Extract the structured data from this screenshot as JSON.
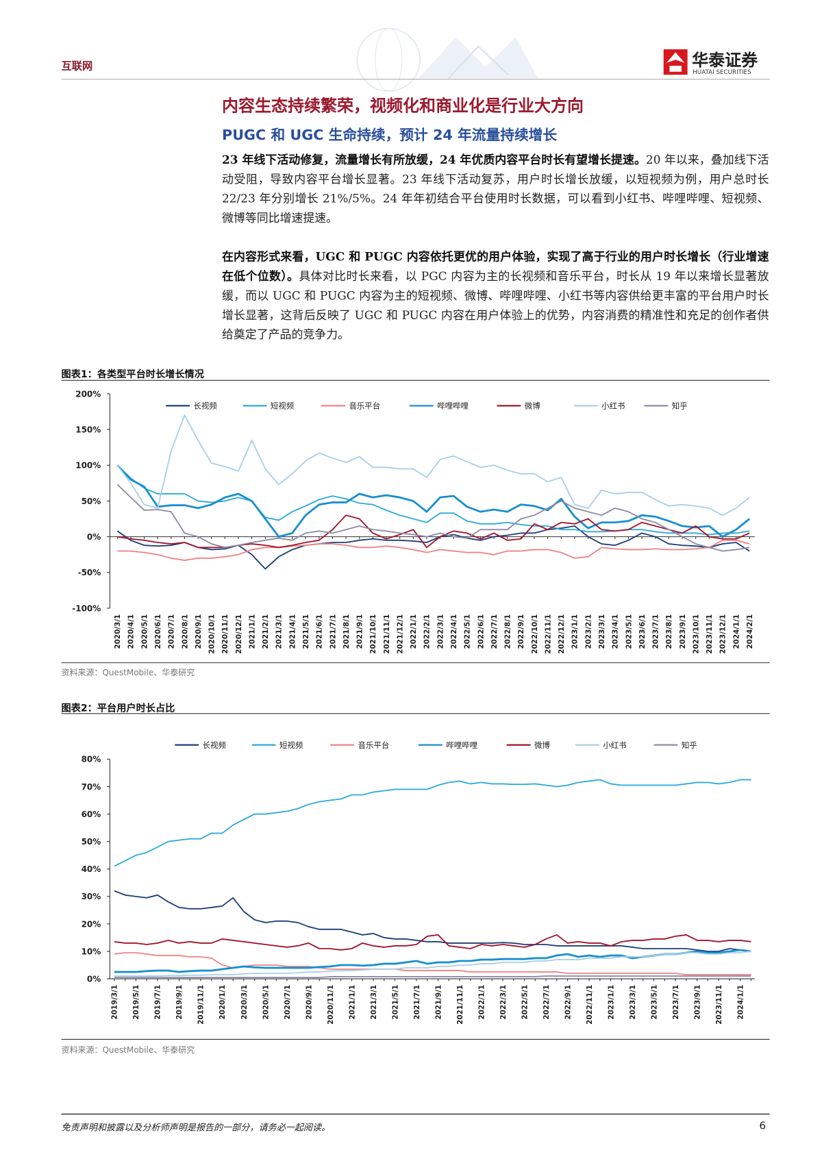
{
  "header": {
    "section": "互联网",
    "brand": "华泰证券",
    "brand_en": "HUATAI SECURITIES"
  },
  "headline": "内容生态持续繁荣，视频化和商业化是行业大方向",
  "subheadline": "PUGC 和 UGC 生命持续，预计 24 年流量持续增长",
  "paragraphs": [
    {
      "bold": "23 年线下活动修复，流量增长有所放缓，24 年优质内容平台时长有望增长提速。",
      "text": "20 年以来，叠加线下活动受阻，导致内容平台增长显著。23 年线下活动复苏，用户时长增长放缓，以短视频为例，用户总时长 22/23 年分别增长 21%/5%。24 年年初结合平台使用时长数据，可以看到小红书、哔哩哔哩、短视频、微博等同比增速提速。"
    },
    {
      "bold": "在内容形式来看，UGC 和 PUGC 内容依托更优的用户体验，实现了高于行业的用户时长增长（行业增速在低个位数）。",
      "text": "具体对比时长来看，以 PGC 内容为主的长视频和音乐平台，时长从 19 年以来增长显著放缓，而以 UGC 和 PUGC 内容为主的短视频、微博、哔哩哔哩、小红书等内容供给更丰富的平台用户时长增长显著，这背后反映了 UGC 和 PUGC 内容在用户体验上的优势，内容消费的精准性和充足的创作者供给奠定了产品的竞争力。"
    }
  ],
  "chart_data": [
    {
      "type": "line",
      "title": "图表1：各类型平台时长增长情况",
      "source": "资料来源：QuestMobile、华泰研究",
      "categories": [
        "2020/3/1",
        "2020/4/1",
        "2020/5/1",
        "2020/6/1",
        "2020/7/1",
        "2020/8/1",
        "2020/9/1",
        "2020/10/1",
        "2020/11/1",
        "2020/12/1",
        "2021/1/1",
        "2021/2/1",
        "2021/3/1",
        "2021/4/1",
        "2021/5/1",
        "2021/6/1",
        "2021/7/1",
        "2021/8/1",
        "2021/9/1",
        "2021/10/1",
        "2021/11/1",
        "2021/12/1",
        "2022/1/1",
        "2022/2/1",
        "2022/3/1",
        "2022/4/1",
        "2022/5/1",
        "2022/6/1",
        "2022/7/1",
        "2022/8/1",
        "2022/9/1",
        "2022/10/1",
        "2022/11/1",
        "2022/12/1",
        "2023/1/1",
        "2023/2/1",
        "2023/3/1",
        "2023/4/1",
        "2023/5/1",
        "2023/6/1",
        "2023/7/1",
        "2023/8/1",
        "2023/9/1",
        "2023/10/1",
        "2023/11/1",
        "2023/12/1",
        "2024/1/1",
        "2024/2/1"
      ],
      "series": [
        {
          "name": "长视频",
          "color": "#1f3f7a",
          "values": [
            8,
            -5,
            -12,
            -13,
            -12,
            -8,
            -15,
            -18,
            -17,
            -12,
            -25,
            -45,
            -28,
            -18,
            -12,
            -10,
            -8,
            -8,
            -5,
            -3,
            -5,
            -5,
            -6,
            -8,
            0,
            3,
            -2,
            -5,
            0,
            2,
            5,
            5,
            10,
            12,
            15,
            0,
            -10,
            -12,
            -5,
            5,
            0,
            -10,
            -12,
            -13,
            -15,
            -10,
            -8,
            -20
          ]
        },
        {
          "name": "短视频",
          "color": "#2eaadc",
          "values": [
            100,
            82,
            68,
            60,
            60,
            60,
            50,
            48,
            50,
            55,
            50,
            27,
            23,
            35,
            43,
            52,
            57,
            53,
            47,
            45,
            37,
            30,
            25,
            20,
            33,
            33,
            22,
            18,
            18,
            20,
            17,
            15,
            15,
            10,
            10,
            7,
            7,
            8,
            10,
            10,
            7,
            5,
            5,
            5,
            3,
            5,
            5,
            8
          ]
        },
        {
          "name": "音乐平台",
          "color": "#f08484",
          "values": [
            -20,
            -20,
            -22,
            -25,
            -30,
            -33,
            -30,
            -30,
            -28,
            -25,
            -18,
            -15,
            -15,
            -13,
            -12,
            -10,
            -10,
            -12,
            -15,
            -15,
            -13,
            -15,
            -18,
            -22,
            -18,
            -20,
            -22,
            -22,
            -25,
            -20,
            -20,
            -18,
            -18,
            -22,
            -30,
            -28,
            -15,
            -17,
            -18,
            -18,
            -17,
            -18,
            -18,
            -17,
            -15,
            -5,
            -5,
            -10
          ]
        },
        {
          "name": "哔哩哔哩",
          "color": "#1a8fd0",
          "values": [
            100,
            80,
            70,
            42,
            44,
            44,
            40,
            45,
            55,
            60,
            50,
            25,
            0,
            5,
            30,
            45,
            48,
            48,
            60,
            55,
            58,
            55,
            50,
            35,
            55,
            57,
            42,
            35,
            38,
            35,
            45,
            43,
            37,
            53,
            28,
            12,
            20,
            20,
            22,
            30,
            28,
            22,
            15,
            13,
            15,
            0,
            10,
            25
          ]
        },
        {
          "name": "微博",
          "color": "#a0162a",
          "values": [
            0,
            -3,
            -5,
            -8,
            -10,
            -8,
            -15,
            -15,
            -15,
            -12,
            -10,
            -12,
            -15,
            -12,
            -8,
            -5,
            10,
            30,
            25,
            5,
            -3,
            3,
            10,
            -15,
            0,
            8,
            5,
            -3,
            5,
            -5,
            -3,
            18,
            10,
            20,
            18,
            25,
            10,
            8,
            10,
            20,
            15,
            10,
            5,
            15,
            0,
            -3,
            -3,
            5
          ]
        },
        {
          "name": "小红书",
          "color": "#a8d0e6",
          "values": [
            100,
            75,
            45,
            40,
            120,
            170,
            135,
            103,
            98,
            92,
            135,
            95,
            73,
            88,
            106,
            117,
            110,
            104,
            112,
            97,
            97,
            95,
            95,
            83,
            108,
            113,
            105,
            97,
            100,
            93,
            88,
            88,
            77,
            83,
            45,
            40,
            65,
            60,
            62,
            62,
            52,
            43,
            45,
            43,
            40,
            30,
            40,
            55
          ]
        },
        {
          "name": "知乎",
          "color": "#8c8ca8",
          "values": [
            73,
            55,
            37,
            38,
            35,
            5,
            0,
            -10,
            -15,
            -12,
            -8,
            -5,
            -2,
            -5,
            5,
            8,
            5,
            10,
            15,
            10,
            8,
            5,
            3,
            0,
            5,
            0,
            -2,
            10,
            10,
            10,
            25,
            30,
            40,
            50,
            40,
            35,
            30,
            40,
            35,
            25,
            20,
            10,
            0,
            -10,
            -15,
            -20,
            -18,
            -15
          ]
        }
      ],
      "ylim": [
        -100,
        200
      ],
      "yticks": [
        {
          "value": -100,
          "label": "-100%"
        },
        {
          "value": -50,
          "label": "-50%"
        },
        {
          "value": 0,
          "label": "0%"
        },
        {
          "value": 50,
          "label": "50%"
        },
        {
          "value": 100,
          "label": "100%"
        },
        {
          "value": 150,
          "label": "150%"
        },
        {
          "value": 200,
          "label": "200%"
        }
      ],
      "grid": false,
      "legend": "top"
    },
    {
      "type": "line",
      "title": "图表2：平台用户时长占比",
      "source": "资料来源：QuestMobile、华泰研究",
      "categories": [
        "2019/3/1",
        null,
        "2019/5/1",
        null,
        "2019/7/1",
        null,
        "2019/9/1",
        null,
        "2019/11/1",
        null,
        "2020/1/1",
        null,
        "2020/3/1",
        null,
        "2020/5/1",
        null,
        "2020/7/1",
        null,
        "2020/9/1",
        null,
        "2020/11/1",
        null,
        "2021/1/1",
        null,
        "2021/3/1",
        null,
        "2021/5/1",
        null,
        "2021/7/1",
        null,
        "2021/9/1",
        null,
        "2021/11/1",
        null,
        "2022/1/1",
        null,
        "2022/3/1",
        null,
        "2022/5/1",
        null,
        "2022/7/1",
        null,
        "2022/9/1",
        null,
        "2022/11/1",
        null,
        "2023/1/1",
        null,
        "2023/3/1",
        null,
        "2023/5/1",
        null,
        "2023/7/1",
        null,
        "2023/9/1",
        null,
        "2023/11/1",
        null,
        "2024/1/1",
        null
      ],
      "series": [
        {
          "name": "长视频",
          "color": "#1f3f7a",
          "values": [
            32,
            30.5,
            30,
            29.5,
            30.5,
            28,
            26,
            25.5,
            25.5,
            26,
            26.5,
            29.5,
            24.5,
            21.5,
            20.5,
            21,
            21,
            20.5,
            19,
            18,
            18,
            18,
            17,
            16,
            16.5,
            15,
            14.5,
            14.5,
            14,
            13.5,
            13.5,
            13,
            13,
            13,
            13,
            13,
            13.2,
            13,
            12.5,
            12.5,
            12.5,
            12,
            12,
            12,
            12,
            12,
            12,
            12,
            11.5,
            11,
            11,
            11,
            11,
            11,
            10.5,
            10,
            10,
            11,
            10.5,
            10
          ]
        },
        {
          "name": "短视频",
          "color": "#2eaadc",
          "values": [
            41,
            43,
            45,
            46,
            48,
            50,
            50.5,
            51,
            51,
            53,
            53,
            56,
            58,
            60,
            60,
            60.5,
            61,
            62,
            63.5,
            64.5,
            65,
            65.5,
            67,
            67,
            68,
            68.5,
            69,
            69,
            69,
            69,
            70.5,
            71.5,
            72,
            71,
            71.5,
            71,
            71,
            70.8,
            70.8,
            71,
            70.5,
            70,
            70.5,
            71.5,
            72,
            72.5,
            71,
            70.5,
            70.5,
            70.5,
            70.5,
            70.5,
            70.5,
            71,
            71.5,
            71.5,
            71,
            71.5,
            72.5,
            72.5
          ]
        },
        {
          "name": "音乐平台",
          "color": "#f08484",
          "values": [
            9,
            9.5,
            9.5,
            9,
            8.5,
            8.5,
            8.5,
            8,
            8,
            7.5,
            5,
            4,
            4.5,
            5,
            5,
            5,
            4.5,
            4.5,
            4.5,
            4,
            3.5,
            3.5,
            3.5,
            3.5,
            3.5,
            3.5,
            3.5,
            3,
            3,
            3,
            3,
            3,
            3,
            2.5,
            2.5,
            2.5,
            2.5,
            2.5,
            2.5,
            2.5,
            2.5,
            2.5,
            2,
            2,
            2,
            2,
            2,
            2,
            2,
            2,
            2,
            2,
            2,
            1.5,
            1.5,
            1.5,
            1.5,
            1.5,
            1.5,
            1.5
          ]
        },
        {
          "name": "哔哩哔哩",
          "color": "#1a8fd0",
          "values": [
            2.5,
            2.5,
            2.5,
            2.8,
            3,
            3,
            2.5,
            2.8,
            3,
            3,
            3.5,
            4,
            4.5,
            4.2,
            4,
            4,
            4,
            4,
            4,
            4.3,
            4.5,
            5,
            5,
            4.8,
            5,
            5.5,
            5.5,
            6,
            6.5,
            5.5,
            6,
            6,
            6.5,
            6.5,
            7,
            7,
            7.2,
            7.2,
            7.2,
            7.5,
            7.5,
            8.5,
            9,
            8,
            8.5,
            8,
            8.5,
            8.5,
            7.5,
            8,
            8.5,
            9,
            9,
            9.5,
            10,
            9.5,
            9.5,
            10,
            10.5,
            10
          ]
        },
        {
          "name": "微博",
          "color": "#a0162a",
          "values": [
            13.5,
            13,
            13,
            12.5,
            13,
            14,
            13,
            13.5,
            13,
            13,
            14.5,
            14,
            13.5,
            13,
            12.5,
            12,
            11.5,
            12,
            13,
            11,
            11,
            10.5,
            11,
            13,
            12,
            11.5,
            12,
            12,
            12.5,
            15.5,
            16,
            12,
            11.5,
            11,
            12.5,
            12,
            12.5,
            12,
            11.5,
            12.5,
            14.5,
            16,
            13,
            13.5,
            13,
            13,
            12,
            13.5,
            14,
            14,
            14.5,
            14.5,
            15.5,
            16,
            14,
            14,
            13.5,
            14,
            14,
            13.5
          ]
        },
        {
          "name": "小红书",
          "color": "#a8d0e6",
          "values": [
            1,
            1,
            1,
            1,
            1,
            1.2,
            1.2,
            1.3,
            1.3,
            1.5,
            1.5,
            1.5,
            1.8,
            2,
            2,
            2,
            2,
            2.2,
            2.5,
            2.5,
            2.8,
            3,
            3,
            3.2,
            3.5,
            3.5,
            3.5,
            4,
            4,
            4,
            4.5,
            4.5,
            5,
            5,
            5.5,
            5.5,
            6,
            6,
            6,
            6.5,
            6.5,
            7,
            7,
            7,
            7.5,
            7.5,
            7.5,
            8,
            8,
            8,
            8.5,
            9,
            9,
            9.5,
            9.5,
            9,
            9,
            9.5,
            9.5,
            10
          ]
        },
        {
          "name": "知乎",
          "color": "#8c8ca8",
          "values": [
            0.5,
            0.5,
            0.5,
            0.5,
            0.5,
            0.5,
            0.5,
            0.5,
            0.5,
            0.5,
            0.5,
            0.5,
            0.5,
            0.5,
            0.5,
            0.5,
            0.5,
            0.5,
            0.5,
            0.5,
            0.8,
            0.8,
            0.8,
            0.8,
            0.8,
            0.8,
            0.8,
            0.8,
            0.8,
            0.8,
            0.8,
            0.8,
            0.8,
            0.8,
            0.8,
            0.8,
            0.8,
            0.8,
            0.8,
            0.8,
            1,
            1,
            1,
            1,
            1,
            1,
            1,
            1,
            1,
            1,
            1,
            1,
            1,
            1,
            1,
            1,
            1,
            1,
            1,
            1
          ]
        }
      ],
      "ylim": [
        0,
        80
      ],
      "yticks": [
        {
          "value": 0,
          "label": "0%"
        },
        {
          "value": 10,
          "label": "10%"
        },
        {
          "value": 20,
          "label": "20%"
        },
        {
          "value": 30,
          "label": "30%"
        },
        {
          "value": 40,
          "label": "40%"
        },
        {
          "value": 50,
          "label": "50%"
        },
        {
          "value": 60,
          "label": "60%"
        },
        {
          "value": 70,
          "label": "70%"
        },
        {
          "value": 80,
          "label": "80%"
        }
      ],
      "grid": false,
      "legend": "top"
    }
  ],
  "footer": {
    "disclaimer": "免责声明和披露以及分析师声明是报告的一部分，请务必一起阅读。",
    "page": 6
  }
}
